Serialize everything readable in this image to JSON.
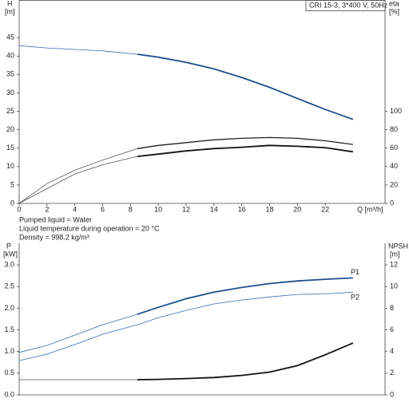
{
  "chart_data": [
    {
      "type": "line",
      "title": "CRI 15-3, 3*400 V, 50Hz",
      "y_label": "H",
      "y_unit": "[m]",
      "y2_label": "eta",
      "y2_unit": "[%]",
      "x_label": "Q [m³/h]",
      "notes": [
        "Pumped liquid = Water",
        "Liquid temperature during operation = 20 °C",
        "Density = 998.2 kg/m³"
      ],
      "x": [
        0,
        2,
        4,
        6,
        8.5,
        10,
        12,
        14,
        16,
        18,
        20,
        22,
        24
      ],
      "xlim": [
        0,
        26.3
      ],
      "xticks": [
        0,
        2,
        4,
        6,
        8,
        10,
        12,
        14,
        16,
        18,
        20,
        22
      ],
      "ylim": [
        0,
        55
      ],
      "yticks": [
        0,
        5,
        10,
        15,
        20,
        25,
        30,
        35,
        40,
        45
      ],
      "y2lim": [
        0,
        220
      ],
      "y2ticks": [
        0,
        20,
        40,
        60,
        80,
        100
      ],
      "series": [
        {
          "color": "#3a6ab0",
          "width": 0.8,
          "values": [
            42.8,
            42.2,
            41.8,
            41.4,
            40.5,
            null,
            null,
            null,
            null,
            null,
            null,
            null,
            null
          ]
        },
        {
          "color": "#1f4e8c",
          "width": 1.8,
          "values": [
            null,
            null,
            null,
            null,
            40.5,
            39.7,
            38.3,
            36.5,
            34.2,
            31.5,
            28.5,
            25.5,
            22.8
          ]
        },
        {
          "color": "#555555",
          "width": 0.8,
          "axis": "y2",
          "values": [
            0,
            21.5,
            36,
            47,
            59.5,
            null,
            null,
            null,
            null,
            null,
            null,
            null,
            null
          ]
        },
        {
          "color": "#222222",
          "width": 1.3,
          "axis": "y2",
          "values": [
            null,
            null,
            null,
            null,
            59.5,
            63,
            66,
            69,
            70.7,
            71.5,
            70.7,
            68,
            64
          ]
        },
        {
          "color": "#555555",
          "width": 0.8,
          "axis": "y2",
          "values": [
            0,
            16,
            32,
            42,
            51,
            null,
            null,
            null,
            null,
            null,
            null,
            null,
            null
          ]
        },
        {
          "color": "#111111",
          "width": 1.8,
          "axis": "y2",
          "values": [
            null,
            null,
            null,
            null,
            51,
            53.5,
            57,
            59.5,
            61,
            63,
            62,
            60.5,
            56
          ]
        }
      ]
    },
    {
      "type": "line",
      "y_label": "P",
      "y_unit": "[kW]",
      "y2_label": "NPSH",
      "y2_unit": "[m]",
      "x": [
        0,
        2,
        4,
        6,
        8.5,
        10,
        12,
        14,
        16,
        18,
        20,
        22,
        24
      ],
      "xlim": [
        0,
        26.3
      ],
      "ylim": [
        0,
        3.5
      ],
      "yticks": [
        {
          "value": 0,
          "label": "0.0"
        },
        0.5,
        {
          "value": 1,
          "label": "1.0"
        },
        1.5,
        {
          "value": 2,
          "label": "2.0"
        },
        2.5,
        {
          "value": 3,
          "label": "3.0"
        }
      ],
      "y2lim": [
        0,
        14
      ],
      "y2ticks": [
        0,
        2,
        4,
        6,
        8,
        10,
        12
      ],
      "series": [
        {
          "color": "#3a6ab0",
          "width": 0.8,
          "values": [
            0.98,
            1.14,
            1.38,
            1.62,
            1.86,
            null,
            null,
            null,
            null,
            null,
            null,
            null,
            null
          ]
        },
        {
          "name": "P1",
          "color": "#1f4e8c",
          "width": 1.8,
          "values": [
            null,
            null,
            null,
            null,
            1.86,
            2.02,
            2.22,
            2.37,
            2.48,
            2.57,
            2.63,
            2.67,
            2.7
          ]
        },
        {
          "name": "P2",
          "color": "#3a6ab0",
          "width": 0.8,
          "values": [
            0.79,
            0.94,
            1.16,
            1.4,
            1.62,
            1.78,
            1.95,
            2.1,
            2.19,
            2.26,
            2.32,
            2.33,
            2.37
          ]
        },
        {
          "color": "#555555",
          "width": 0.8,
          "axis": "y2",
          "values": [
            1.4,
            1.4,
            1.4,
            1.4,
            1.4,
            null,
            null,
            null,
            null,
            null,
            null,
            null,
            null
          ]
        },
        {
          "color": "#111111",
          "width": 1.8,
          "axis": "y2",
          "values": [
            null,
            null,
            null,
            null,
            1.4,
            1.43,
            1.5,
            1.6,
            1.8,
            2.1,
            2.7,
            3.7,
            4.78
          ]
        }
      ]
    }
  ]
}
